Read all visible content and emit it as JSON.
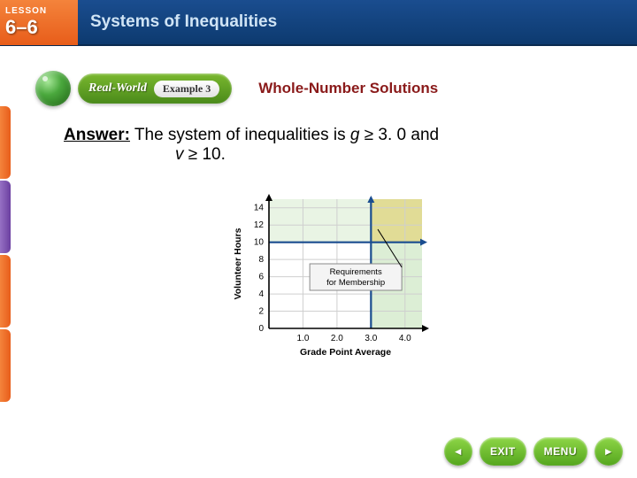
{
  "header": {
    "lesson_label": "LESSON",
    "lesson_number": "6–6",
    "chapter_title": "Systems of Inequalities"
  },
  "example_bar": {
    "real_world": "Real-World",
    "example_badge": "Example 3",
    "topic_title": "Whole-Number Solutions"
  },
  "answer": {
    "label": "Answer:",
    "text_before": "The system of inequalities is ",
    "var1": "g",
    "cond1": " ≥ 3. 0 and ",
    "var2": "v",
    "cond2": " ≥ 10."
  },
  "chart": {
    "type": "system-of-inequalities-region",
    "xlabel": "Grade Point Average",
    "ylabel": "Volunteer Hours",
    "x_ticks": [
      "1.0",
      "2.0",
      "3.0",
      "4.0"
    ],
    "y_ticks": [
      "0",
      "2",
      "4",
      "6",
      "8",
      "10",
      "12",
      "14"
    ],
    "x_range": [
      0,
      4.5
    ],
    "y_range": [
      0,
      15
    ],
    "vline_x": 3.0,
    "hline_y": 10,
    "annotation": "Requirements for Membership",
    "grid_color": "#cfcfcf",
    "axis_color": "#000000",
    "region_fill": "#bfe0b2",
    "region_opacity": 0.55,
    "highlight_region_fill": "#f7d77a",
    "line_color": "#1a4d8f",
    "line_width": 2.2,
    "annotation_bg": "#f4f4f4",
    "annotation_border": "#888888",
    "label_fontsize": 10.5,
    "tick_fontsize": 10,
    "arrow_color": "#1a4d8f"
  },
  "buttons": {
    "back": "◄",
    "exit": "EXIT",
    "menu": "MENU",
    "fwd": "►"
  }
}
